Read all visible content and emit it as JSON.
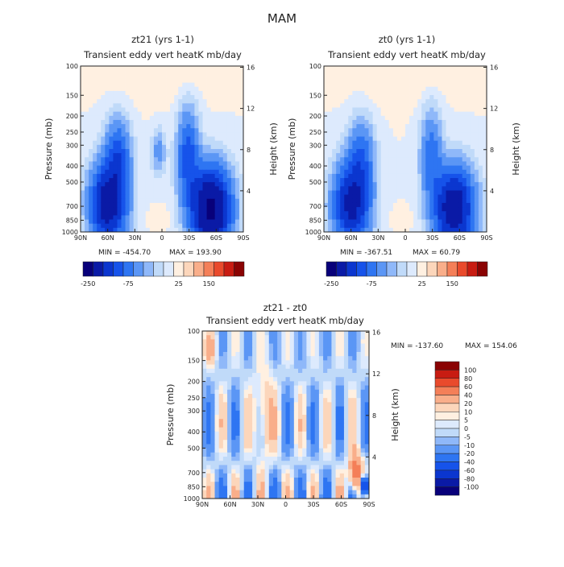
{
  "figure": {
    "title": "MAM"
  },
  "colors": {
    "fill_scale": [
      "#08007a",
      "#0a1aa6",
      "#0b36cf",
      "#1653ea",
      "#2e75f2",
      "#5b96f5",
      "#8fb8f9",
      "#c0daf9",
      "#ddeafd",
      "#fff0e1",
      "#fcd6bb",
      "#f9ae8a",
      "#f47f58",
      "#e94a2c",
      "#c81c12",
      "#8a0303"
    ]
  },
  "chart_data": [
    {
      "type": "heatmap",
      "title": "zt21 (yrs 1-1)",
      "subtitle": "Transient eddy vert heatK mb/day",
      "xlabel": "",
      "ylabel": "Pressure (mb)",
      "ylabel_right": "Height (km)",
      "x_tick_labels": [
        "90N",
        "60N",
        "30N",
        "0",
        "30S",
        "60S",
        "90S"
      ],
      "y_ticks": [
        100,
        150,
        200,
        250,
        300,
        400,
        500,
        700,
        850,
        1000
      ],
      "y_tick_labels": [
        "100",
        "150",
        "200",
        "250",
        "300",
        "400",
        "500",
        "700",
        "850",
        "1000"
      ],
      "height_ticks": [
        4,
        8,
        12,
        16
      ],
      "ylim": [
        100,
        1000
      ],
      "y_scale": "log",
      "min_text": "MIN = -454.70",
      "max_text": "MAX = 193.90",
      "min": -454.7,
      "max": 193.9,
      "colorbar_labels": [
        "-250",
        "-75",
        "25",
        "150"
      ]
    },
    {
      "type": "heatmap",
      "title": "zt0 (yrs 1-1)",
      "subtitle": "Transient eddy vert heatK mb/day",
      "xlabel": "",
      "ylabel": "Pressure (mb)",
      "ylabel_right": "Height (km)",
      "x_tick_labels": [
        "90N",
        "60N",
        "30N",
        "0",
        "30S",
        "60S",
        "90S"
      ],
      "y_ticks": [
        100,
        150,
        200,
        250,
        300,
        400,
        500,
        700,
        850,
        1000
      ],
      "y_tick_labels": [
        "100",
        "150",
        "200",
        "250",
        "300",
        "400",
        "500",
        "700",
        "850",
        "1000"
      ],
      "height_ticks": [
        4,
        8,
        12,
        16
      ],
      "ylim": [
        100,
        1000
      ],
      "y_scale": "log",
      "min_text": "MIN = -367.51",
      "max_text": "MAX =  60.79",
      "min": -367.51,
      "max": 60.79,
      "colorbar_labels": [
        "-250",
        "-75",
        "25",
        "150"
      ]
    },
    {
      "type": "heatmap",
      "title": "zt21 - zt0",
      "subtitle": "Transient eddy vert heatK mb/day",
      "xlabel": "",
      "ylabel": "Pressure (mb)",
      "ylabel_right": "Height (km)",
      "x_tick_labels": [
        "90N",
        "60N",
        "30N",
        "0",
        "30S",
        "60S",
        "90S"
      ],
      "y_ticks": [
        100,
        150,
        200,
        250,
        300,
        400,
        500,
        700,
        850,
        1000
      ],
      "y_tick_labels": [
        "100",
        "150",
        "200",
        "250",
        "300",
        "400",
        "500",
        "700",
        "850",
        "1000"
      ],
      "height_ticks": [
        4,
        8,
        12,
        16
      ],
      "ylim": [
        100,
        1000
      ],
      "y_scale": "log",
      "min_text": "MIN = -137.60",
      "max_text": "MAX = 154.06",
      "min": -137.6,
      "max": 154.06,
      "colorbar_labels": [
        "100",
        "80",
        "60",
        "40",
        "20",
        "10",
        "5",
        "0",
        "-5",
        "-10",
        "-20",
        "-40",
        "-60",
        "-80",
        "-100"
      ]
    }
  ]
}
